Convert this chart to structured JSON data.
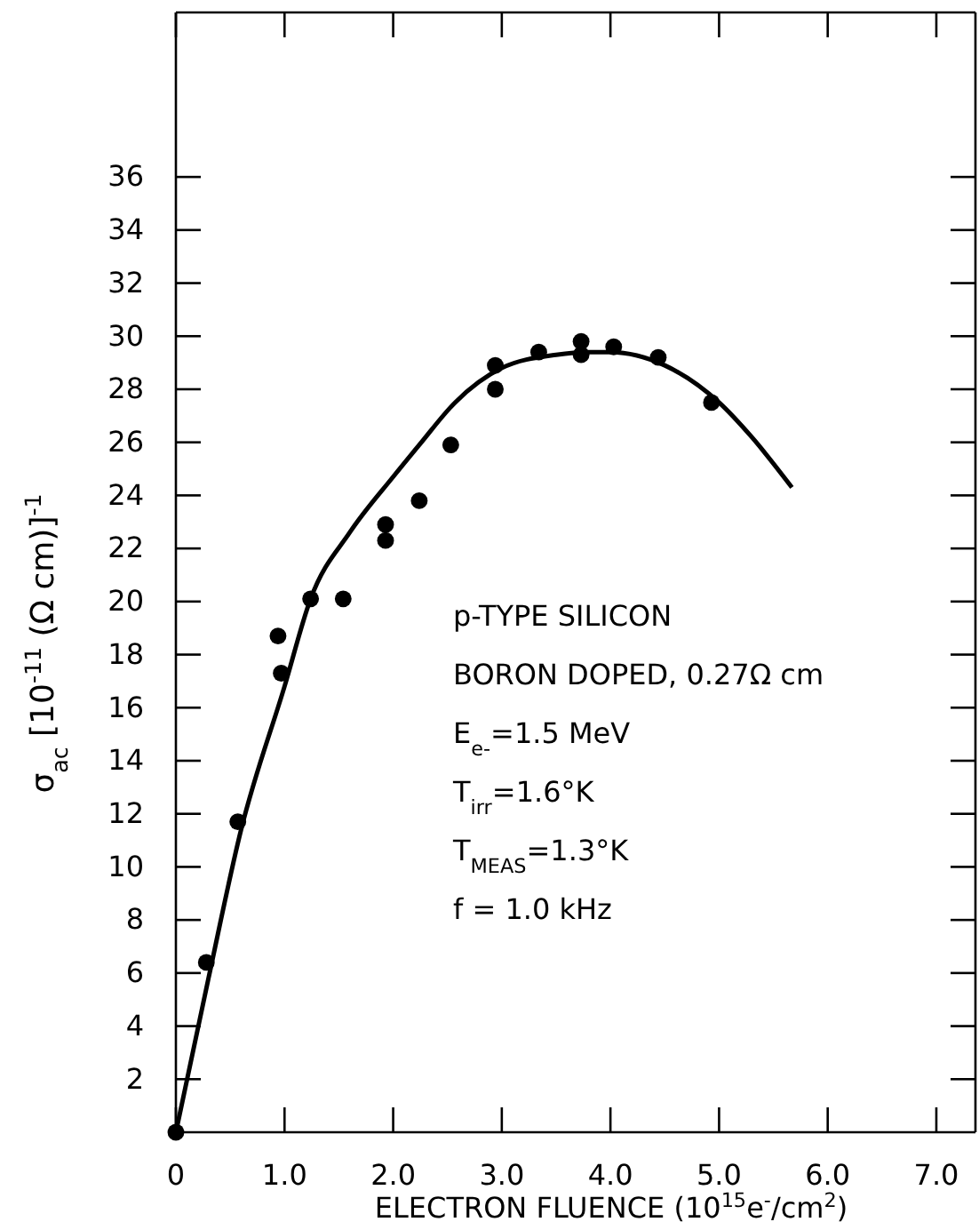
{
  "chart_data": {
    "type": "scatter",
    "xlabel": "ELECTRON FLUENCE (10$^{15}$e$^{-}$/cm$^{2}$)",
    "ylabel": "σ$_{ac}$ [10$^{-11}$ (Ω cm)]$^{-1}$",
    "annotations": [
      "p-TYPE SILICON",
      "BORON DOPED, 0.27Ω cm",
      "E$_{e-}$=1.5 MeV",
      "T$_{irr}$=1.6°K",
      "T$_{MEAS}$=1.3°K",
      "f = 1.0 kHz"
    ],
    "xlim": [
      0,
      7.36
    ],
    "ylim": [
      0,
      42.2
    ],
    "xticks": [
      {
        "value": 0,
        "label": "0"
      },
      {
        "value": 1,
        "label": "1.0"
      },
      {
        "value": 2,
        "label": "2.0"
      },
      {
        "value": 3,
        "label": "3.0"
      },
      {
        "value": 4,
        "label": "4.0"
      },
      {
        "value": 5,
        "label": "5.0"
      },
      {
        "value": 6,
        "label": "6.0"
      },
      {
        "value": 7,
        "label": "7.0"
      }
    ],
    "yticks": [
      2,
      4,
      6,
      8,
      10,
      12,
      14,
      16,
      18,
      20,
      22,
      24,
      26,
      28,
      30,
      32,
      34,
      36
    ],
    "grid": false,
    "series": [
      {
        "marker": "circle",
        "color": "#000000",
        "x": [
          0,
          0.28,
          0.57,
          0.97,
          0.94,
          1.24,
          1.54,
          1.93,
          1.93,
          2.24,
          2.53,
          2.94,
          2.94,
          3.34,
          3.73,
          3.73,
          4.03,
          4.44,
          4.93
        ],
        "values": [
          0,
          6.4,
          11.7,
          17.3,
          18.7,
          20.1,
          20.1,
          22.9,
          22.3,
          23.8,
          25.9,
          28.9,
          28.0,
          29.4,
          29.8,
          29.3,
          29.6,
          29.2,
          27.5
        ]
      },
      {
        "type": "line",
        "color": "#000000",
        "line_style": "solid",
        "x": [
          0,
          0.3,
          0.6,
          1.0,
          1.24,
          1.6,
          2.0,
          2.24,
          2.57,
          3.0,
          3.5,
          3.8,
          4.0,
          4.5,
          5.0,
          5.3,
          5.67
        ],
        "values": [
          0,
          5.8,
          11.4,
          16.8,
          20.1,
          22.6,
          24.7,
          25.9,
          27.5,
          28.8,
          29.3,
          29.4,
          29.4,
          28.9,
          27.5,
          26.2,
          24.3
        ]
      }
    ]
  }
}
